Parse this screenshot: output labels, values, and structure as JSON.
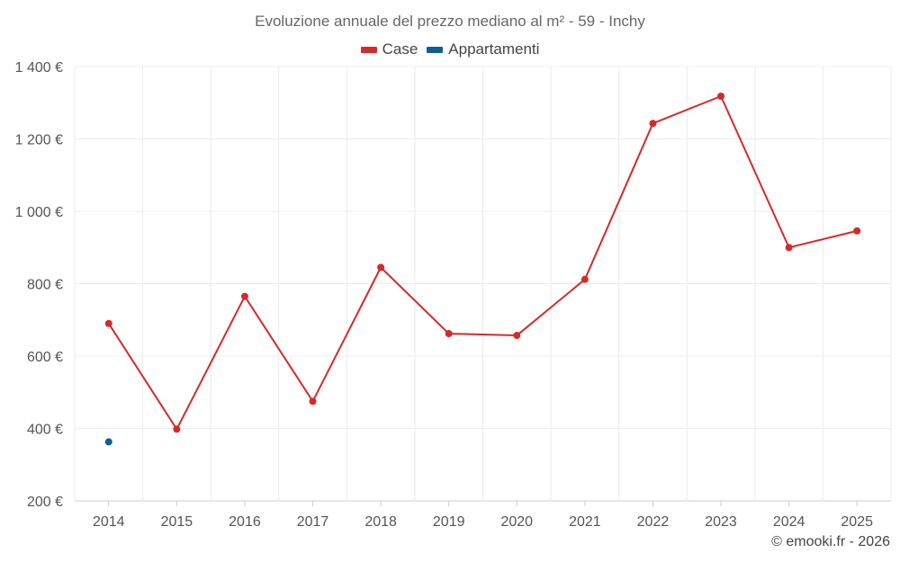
{
  "chart_data": {
    "type": "line",
    "title": "Evoluzione annuale del prezzo mediano al m² - 59 - Inchy",
    "categories": [
      "2014",
      "2015",
      "2016",
      "2017",
      "2018",
      "2019",
      "2020",
      "2021",
      "2022",
      "2023",
      "2024",
      "2025"
    ],
    "ylim": [
      200,
      1400
    ],
    "yticks": [
      200,
      400,
      600,
      800,
      1000,
      1200,
      1400
    ],
    "ytick_labels": [
      "200 €",
      "400 €",
      "600 €",
      "800 €",
      "1 000 €",
      "1 200 €",
      "1 400 €"
    ],
    "grid": true,
    "legend_position": "top-center",
    "series": [
      {
        "name": "Case",
        "color": "#d32a2a",
        "values": [
          690,
          398,
          765,
          475,
          845,
          662,
          657,
          812,
          1243,
          1318,
          900,
          946
        ]
      },
      {
        "name": "Appartamenti",
        "color": "#0f5e94",
        "values": [
          363,
          null,
          null,
          null,
          null,
          null,
          null,
          null,
          null,
          null,
          null,
          null
        ]
      }
    ]
  },
  "footer": {
    "credit": "© emooki.fr - 2026"
  }
}
